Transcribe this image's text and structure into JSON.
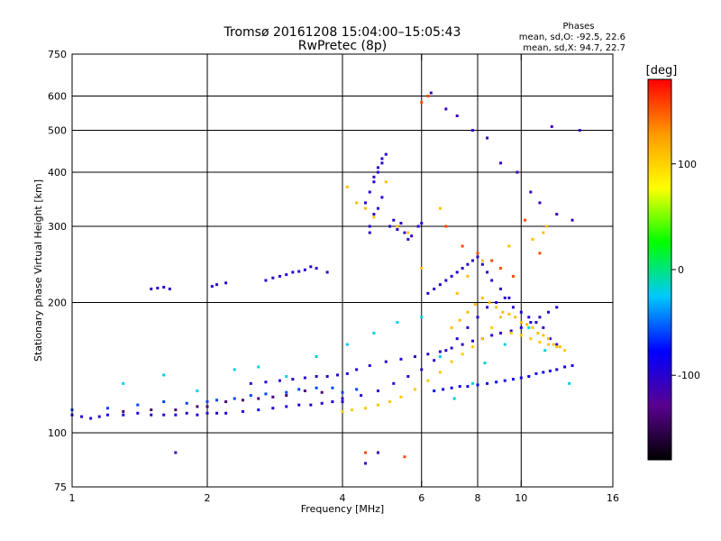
{
  "chart_data": {
    "type": "scatter",
    "title": "Tromsø 20161208 15:04:00–15:05:43",
    "subtitle": "RwPretec (8p)",
    "xlabel": "Frequency [MHz]",
    "ylabel": "Stationary phase Virtual Height [km]",
    "x_scale": "log",
    "y_scale": "log",
    "xlim": [
      1,
      16
    ],
    "ylim": [
      75,
      750
    ],
    "x_ticks": [
      1,
      2,
      4,
      6,
      8,
      10,
      16
    ],
    "y_ticks": [
      75,
      100,
      200,
      300,
      400,
      500,
      600,
      750
    ],
    "x_gridlines": [
      2,
      4,
      6,
      8,
      10
    ],
    "y_gridlines": [
      100,
      200,
      300,
      400,
      500,
      600
    ],
    "stats": {
      "heading": "Phases",
      "line_o": "mean, sd,O: -92.5, 22.6",
      "line_x": "mean, sd,X:  94.7, 22.7"
    },
    "colorbar": {
      "label": "[deg]",
      "range": [
        -180,
        180
      ],
      "ticks": [
        100,
        0,
        -100
      ],
      "colors": [
        "#000000",
        "#5a0090",
        "#0000ff",
        "#00c8ff",
        "#00ff00",
        "#ffff00",
        "#ff9900",
        "#ff0000"
      ]
    },
    "series": [
      {
        "type": "points",
        "phase": -95,
        "x": [
          1.0,
          1.05,
          1.1,
          1.15,
          1.2,
          1.3,
          1.4,
          1.5,
          1.6,
          1.7,
          1.8,
          1.9,
          2.0,
          2.1,
          2.2,
          2.4,
          2.6,
          2.8,
          3.0,
          3.2,
          3.4,
          3.6,
          3.8,
          4.0
        ],
        "y": [
          110,
          109,
          108,
          109,
          110,
          110,
          111,
          110,
          110,
          110,
          111,
          110,
          111,
          111,
          111,
          112,
          113,
          114,
          115,
          116,
          116,
          117,
          118,
          118
        ]
      },
      {
        "type": "points",
        "phase": -60,
        "x": [
          1.0,
          1.2,
          1.4,
          1.6,
          1.8,
          2.0,
          2.1,
          2.3,
          2.5,
          2.7,
          3.0,
          3.2,
          3.5,
          3.8,
          4.0,
          4.3
        ],
        "y": [
          113,
          114,
          116,
          118,
          117,
          118,
          119,
          120,
          122,
          123,
          124,
          126,
          127,
          127,
          124,
          126
        ]
      },
      {
        "type": "points",
        "phase": -140,
        "x": [
          1.3,
          1.5,
          1.7,
          1.9,
          2.0,
          2.2,
          2.4,
          2.6,
          2.8,
          3.0,
          3.3,
          3.6
        ],
        "y": [
          112,
          113,
          113,
          115,
          115,
          118,
          119,
          120,
          121,
          122,
          125,
          124
        ]
      },
      {
        "type": "points",
        "phase": -100,
        "x": [
          2.5,
          2.7,
          2.9,
          3.1,
          3.3,
          3.5,
          3.7,
          3.9,
          4.1,
          4.3,
          4.6,
          5.0,
          5.4,
          5.8,
          6.2,
          6.6,
          7.0,
          7.4,
          7.8,
          8.2,
          8.6,
          9.0,
          9.5,
          10.0,
          10.5,
          11.0,
          11.5,
          12.0
        ],
        "y": [
          130,
          131,
          132,
          133,
          134,
          135,
          135,
          136,
          137,
          140,
          143,
          146,
          148,
          150,
          152,
          154,
          157,
          160,
          163,
          165,
          168,
          170,
          172,
          175,
          180,
          185,
          190,
          195
        ]
      },
      {
        "type": "points",
        "phase": -100,
        "x": [
          4.0,
          4.4,
          4.8,
          5.2,
          5.6,
          6.0,
          6.4,
          6.8,
          7.2,
          7.6,
          8.0,
          8.4,
          8.8,
          9.2,
          9.6,
          10.0,
          10.4,
          10.8,
          11.2,
          11.6,
          12.0
        ],
        "y": [
          120,
          122,
          125,
          130,
          135,
          140,
          147,
          155,
          165,
          175,
          185,
          195,
          200,
          205,
          195,
          190,
          185,
          180,
          175,
          165,
          160
        ]
      },
      {
        "type": "points",
        "phase": -85,
        "x": [
          6.4,
          6.7,
          7.0,
          7.3,
          7.6,
          8.0,
          8.4,
          8.8,
          9.2,
          9.6,
          10.0,
          10.4,
          10.8,
          11.2,
          11.6,
          12.0,
          12.5,
          13.0
        ],
        "y": [
          125,
          126,
          127,
          128,
          128,
          129,
          130,
          131,
          132,
          133,
          134,
          135,
          137,
          138,
          139,
          140,
          142,
          143
        ]
      },
      {
        "type": "points",
        "phase": 105,
        "x": [
          4.0,
          4.2,
          4.5,
          4.8,
          5.1,
          5.4,
          5.8,
          6.2,
          6.6,
          7.0,
          7.4,
          7.8,
          8.2,
          8.6,
          9.0,
          9.5,
          10.0,
          10.5,
          11.0,
          11.5,
          12.0,
          12.5
        ],
        "y": [
          112,
          113,
          114,
          116,
          118,
          121,
          126,
          132,
          138,
          146,
          152,
          158,
          165,
          175,
          185,
          170,
          168,
          165,
          162,
          160,
          158,
          155
        ]
      },
      {
        "type": "points",
        "phase": 110,
        "x": [
          7.0,
          7.3,
          7.6,
          7.9,
          8.2,
          8.5,
          8.8,
          9.1,
          9.4,
          9.7,
          10.0,
          10.3,
          10.6,
          10.9,
          11.2,
          11.5,
          11.8,
          12.2
        ],
        "y": [
          175,
          182,
          190,
          198,
          205,
          200,
          195,
          190,
          188,
          185,
          180,
          178,
          175,
          170,
          168,
          165,
          160,
          158
        ]
      },
      {
        "type": "points",
        "phase": -100,
        "x": [
          4.5,
          4.6,
          4.7,
          4.8,
          4.9,
          5.0,
          4.6,
          4.7,
          4.8,
          4.9,
          4.7,
          4.8,
          4.9,
          4.6
        ],
        "y": [
          340,
          360,
          380,
          400,
          420,
          440,
          300,
          320,
          330,
          350,
          390,
          410,
          430,
          290
        ]
      },
      {
        "type": "points",
        "phase": -100,
        "x": [
          5.1,
          5.3,
          5.5,
          5.7,
          5.9,
          6.0,
          5.2,
          5.4,
          5.6
        ],
        "y": [
          300,
          295,
          290,
          285,
          300,
          305,
          310,
          305,
          280
        ]
      },
      {
        "type": "points",
        "phase": -100,
        "x": [
          2.7,
          2.9,
          3.1,
          3.3,
          3.5,
          3.7,
          2.8,
          3.0,
          3.2,
          3.4
        ],
        "y": [
          225,
          230,
          235,
          238,
          240,
          235,
          228,
          232,
          236,
          242
        ]
      },
      {
        "type": "points",
        "phase": -100,
        "x": [
          1.5,
          1.55,
          1.6,
          1.65,
          2.05,
          2.1,
          2.2
        ],
        "y": [
          215,
          216,
          217,
          215,
          218,
          220,
          222
        ]
      },
      {
        "type": "points",
        "phase": 110,
        "x": [
          4.1,
          4.3,
          4.5,
          4.7,
          5.0,
          5.3,
          5.6,
          6.0,
          6.6,
          7.2,
          7.6,
          8.2,
          9.4,
          10.6,
          11.2,
          11.4
        ],
        "y": [
          370,
          340,
          330,
          315,
          380,
          300,
          290,
          240,
          330,
          210,
          230,
          250,
          270,
          280,
          290,
          300
        ]
      },
      {
        "type": "points",
        "phase": -100,
        "x": [
          6.2,
          6.4,
          6.6,
          6.8,
          7.0,
          7.2,
          7.4,
          7.6,
          7.8,
          8.0,
          8.2,
          8.4,
          8.6,
          9.0,
          9.4
        ],
        "y": [
          210,
          215,
          220,
          225,
          230,
          235,
          240,
          245,
          250,
          255,
          245,
          235,
          225,
          215,
          205
        ]
      },
      {
        "type": "points",
        "phase": 155,
        "x": [
          6.0,
          6.2,
          6.8,
          7.4,
          8.0,
          8.6,
          9.0,
          9.6,
          10.2,
          11.0,
          4.5,
          5.5
        ],
        "y": [
          580,
          600,
          300,
          270,
          260,
          250,
          240,
          230,
          310,
          260,
          90,
          88
        ]
      },
      {
        "type": "points",
        "phase": -110,
        "x": [
          6.3,
          6.8,
          7.2,
          7.8,
          8.4,
          9.0,
          9.8,
          10.5,
          11.0,
          12.0,
          13.0,
          13.5,
          4.5,
          4.8,
          1.7,
          11.7
        ],
        "y": [
          610,
          560,
          540,
          500,
          480,
          420,
          400,
          360,
          340,
          320,
          310,
          500,
          85,
          90,
          90,
          510
        ]
      },
      {
        "type": "points",
        "phase": -20,
        "x": [
          1.3,
          1.6,
          1.9,
          2.3,
          2.6,
          3.0,
          3.5,
          4.1,
          4.7,
          5.3,
          6.0,
          6.6,
          7.1,
          7.8,
          8.3,
          9.2,
          10.4,
          11.3,
          12.8
        ],
        "y": [
          130,
          136,
          125,
          140,
          142,
          135,
          150,
          160,
          170,
          180,
          185,
          150,
          120,
          130,
          145,
          160,
          175,
          155,
          130
        ]
      }
    ]
  }
}
